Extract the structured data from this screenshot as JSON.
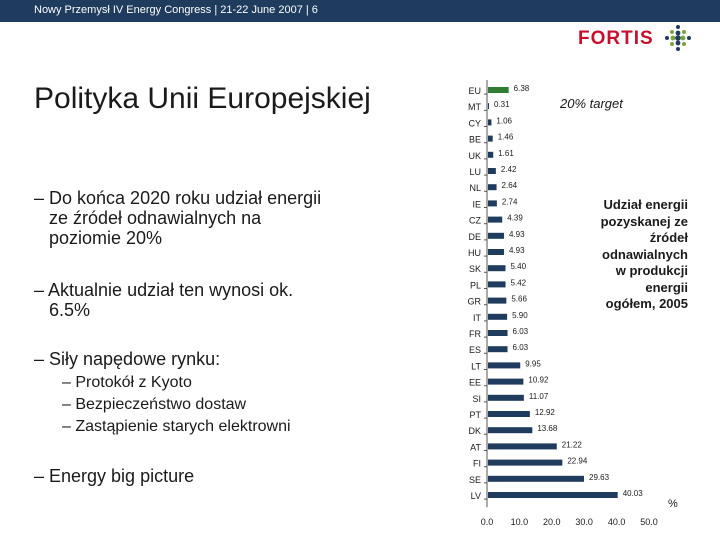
{
  "header": {
    "text": "Nowy Przemysł IV Energy Congress | 21-22 June 2007 | 6"
  },
  "brand": {
    "name": "FORTIS",
    "color": "#c8102e"
  },
  "title": "Polityka Unii Europejskiej",
  "bullets": {
    "b1": [
      "– Do końca 2020 roku udział energii",
      "ze źródeł odnawialnych na",
      "poziomie 20%"
    ],
    "b2": [
      "– Aktualnie udział ten wynosi ok.",
      "6.5%"
    ],
    "b3": "– Siły napędowe rynku:",
    "sub": [
      "– Protokół z Kyoto",
      "– Bezpieczeństwo dostaw",
      "– Zastąpienie starych elektrowni"
    ],
    "b4": "– Energy big picture"
  },
  "chart_note": {
    "target": "20% target",
    "legend": [
      "Udział energii",
      "pozyskanej ze",
      "źródeł",
      "odnawialnych",
      "w produkcji",
      "energii",
      "ogółem, 2005"
    ]
  },
  "chart_data": {
    "type": "bar",
    "orientation": "horizontal",
    "categories": [
      "EU",
      "MT",
      "CY",
      "BE",
      "UK",
      "LU",
      "NL",
      "IE",
      "CZ",
      "DE",
      "HU",
      "SK",
      "PL",
      "GR",
      "IT",
      "FR",
      "ES",
      "LT",
      "EE",
      "SI",
      "PT",
      "DK",
      "AT",
      "FI",
      "SE",
      "LV"
    ],
    "values": [
      6.38,
      0.31,
      1.06,
      1.46,
      1.61,
      2.42,
      2.64,
      2.74,
      4.39,
      4.93,
      4.93,
      5.4,
      5.42,
      5.66,
      5.9,
      6.03,
      6.03,
      9.95,
      10.92,
      11.07,
      12.92,
      13.68,
      21.22,
      22.94,
      29.63,
      40.03
    ],
    "value_labels": [
      "6.38",
      "0.31",
      "1.06",
      "1.46",
      "1.61",
      "2.42",
      "2.64",
      "2.74",
      "4.39",
      "4.93",
      "4.93",
      "5.40",
      "5.42",
      "5.66",
      "5.90",
      "6.03",
      "6.03",
      "9.95",
      "10.92",
      "11.07",
      "12.92",
      "13.68",
      "21.22",
      "22.94",
      "29.63",
      "40.03"
    ],
    "xticks": [
      "0.0",
      "10.0",
      "20.0",
      "30.0",
      "40.0",
      "50.0"
    ],
    "xlim": [
      0,
      50
    ],
    "unit": "%",
    "colors": {
      "EU": "#2e7d32",
      "default": "#1f3b5e"
    }
  }
}
